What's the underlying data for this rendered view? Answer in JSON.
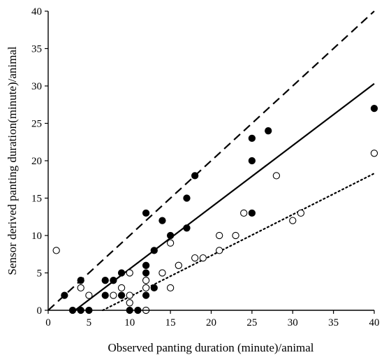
{
  "chart_data": {
    "type": "scatter",
    "title": "",
    "xlabel": "Observed panting duration (minute)/animal",
    "ylabel": "Sensor derived panting duration(minute)/animal",
    "xlim": [
      0,
      40
    ],
    "ylim": [
      0,
      40
    ],
    "xticks": [
      "0",
      "5",
      "10",
      "15",
      "20",
      "25",
      "30",
      "35",
      "40"
    ],
    "yticks": [
      "0",
      "5",
      "10",
      "15",
      "20",
      "25",
      "30",
      "35",
      "40"
    ],
    "grid": false,
    "legend": "none",
    "series": [
      {
        "marker": "filled-circle",
        "color": "#000000",
        "points": [
          [
            2,
            2
          ],
          [
            3,
            0
          ],
          [
            4,
            4
          ],
          [
            4,
            0
          ],
          [
            5,
            0
          ],
          [
            7,
            4
          ],
          [
            7,
            2
          ],
          [
            8,
            4
          ],
          [
            9,
            5
          ],
          [
            9,
            2
          ],
          [
            10,
            0
          ],
          [
            11,
            0
          ],
          [
            12,
            13
          ],
          [
            12,
            6
          ],
          [
            12,
            5
          ],
          [
            12,
            2
          ],
          [
            13,
            8
          ],
          [
            13,
            3
          ],
          [
            14,
            12
          ],
          [
            15,
            10
          ],
          [
            17,
            15
          ],
          [
            17,
            11
          ],
          [
            18,
            18
          ],
          [
            25,
            23
          ],
          [
            25,
            20
          ],
          [
            25,
            13
          ],
          [
            27,
            24
          ],
          [
            40,
            27
          ]
        ]
      },
      {
        "marker": "open-circle",
        "color": "#000000",
        "points": [
          [
            1,
            8
          ],
          [
            4,
            3
          ],
          [
            5,
            2
          ],
          [
            8,
            2
          ],
          [
            9,
            3
          ],
          [
            10,
            5
          ],
          [
            10,
            2
          ],
          [
            10,
            1
          ],
          [
            12,
            4
          ],
          [
            12,
            3
          ],
          [
            12,
            0
          ],
          [
            14,
            5
          ],
          [
            15,
            9
          ],
          [
            15,
            3
          ],
          [
            16,
            6
          ],
          [
            18,
            7
          ],
          [
            19,
            7
          ],
          [
            21,
            10
          ],
          [
            21,
            8
          ],
          [
            23,
            10
          ],
          [
            24,
            13
          ],
          [
            28,
            18
          ],
          [
            30,
            12
          ],
          [
            31,
            13
          ],
          [
            40,
            21
          ]
        ]
      }
    ],
    "lines": [
      {
        "style": "dashed",
        "x": [
          0,
          40
        ],
        "y": [
          0,
          40
        ]
      },
      {
        "style": "solid",
        "x": [
          3.3,
          40
        ],
        "y": [
          0,
          30.3
        ]
      },
      {
        "style": "dotted",
        "x": [
          6.7,
          40
        ],
        "y": [
          0,
          18.3
        ]
      }
    ]
  }
}
